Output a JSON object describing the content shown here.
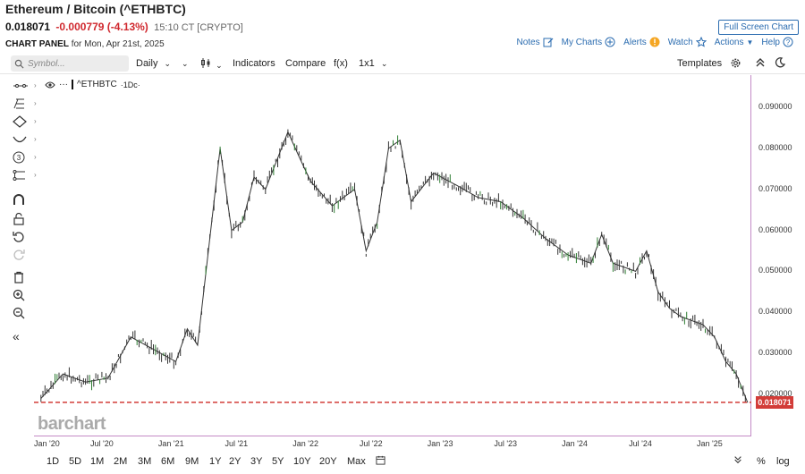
{
  "header": {
    "title": "Ethereum / Bitcoin (^ETHBTC)",
    "last": "0.018071",
    "change": "-0.000779 (-4.13%)",
    "time": "15:10 CT [CRYPTO]",
    "full_screen": "Full Screen Chart",
    "panel_label": "CHART PANEL",
    "panel_date": "for Mon, Apr 21st, 2025"
  },
  "panel_links": {
    "notes": "Notes",
    "my_charts": "My Charts",
    "alerts": "Alerts",
    "watch": "Watch",
    "actions": "Actions",
    "help": "Help"
  },
  "toolbar": {
    "search_placeholder": "Symbol...",
    "interval": "Daily",
    "indicators": "Indicators",
    "compare": "Compare",
    "fx": "f(x)",
    "layout": "1x1",
    "templates": "Templates"
  },
  "legend": {
    "symbol": "^ETHBTC",
    "interval": "·1Dc·"
  },
  "watermark": "barchart",
  "last_price_tag": "0.018071",
  "bottom": {
    "ranges": [
      "1D",
      "5D",
      "1M",
      "2M",
      "3M",
      "6M",
      "9M",
      "1Y",
      "2Y",
      "3Y",
      "5Y",
      "10Y",
      "20Y",
      "Max"
    ],
    "percent": "%",
    "log": "log"
  },
  "colors": {
    "accent": "#2b6cb0",
    "down": "#d0282e",
    "price_tag": "#d23c38",
    "candles": "#333333",
    "up_candles": "#2e7d32"
  },
  "chart_data": {
    "type": "line",
    "title": "",
    "xlabel": "",
    "ylabel": "",
    "ylim": [
      0.01,
      0.095
    ],
    "x_ticks": [
      "Jan '20",
      "Jul '20",
      "Jan '21",
      "Jul '21",
      "Jan '22",
      "Jul '22",
      "Jan '23",
      "Jul '23",
      "Jan '24",
      "Jul '24",
      "Jan '25"
    ],
    "y_ticks": [
      "0.090000",
      "0.080000",
      "0.070000",
      "0.060000",
      "0.050000",
      "0.040000",
      "0.030000",
      "0.020000"
    ],
    "last_value": 0.018071,
    "x": [
      "2020-01",
      "2020-03",
      "2020-05",
      "2020-07",
      "2020-09",
      "2020-11",
      "2021-01",
      "2021-02",
      "2021-03",
      "2021-05",
      "2021-06",
      "2021-07",
      "2021-08",
      "2021-09",
      "2021-11",
      "2021-12",
      "2022-01",
      "2022-03",
      "2022-05",
      "2022-06",
      "2022-07",
      "2022-08",
      "2022-09",
      "2022-10",
      "2022-12",
      "2023-02",
      "2023-04",
      "2023-06",
      "2023-08",
      "2023-10",
      "2023-12",
      "2024-02",
      "2024-03",
      "2024-04",
      "2024-06",
      "2024-07",
      "2024-08",
      "2024-09",
      "2024-10",
      "2024-12",
      "2025-01",
      "2025-02",
      "2025-03",
      "2025-04"
    ],
    "values": [
      0.019,
      0.025,
      0.023,
      0.024,
      0.034,
      0.031,
      0.028,
      0.036,
      0.032,
      0.08,
      0.06,
      0.062,
      0.073,
      0.07,
      0.084,
      0.078,
      0.072,
      0.066,
      0.07,
      0.055,
      0.062,
      0.08,
      0.082,
      0.067,
      0.074,
      0.071,
      0.068,
      0.067,
      0.063,
      0.058,
      0.054,
      0.052,
      0.059,
      0.052,
      0.05,
      0.055,
      0.045,
      0.041,
      0.039,
      0.037,
      0.034,
      0.028,
      0.025,
      0.018
    ]
  }
}
